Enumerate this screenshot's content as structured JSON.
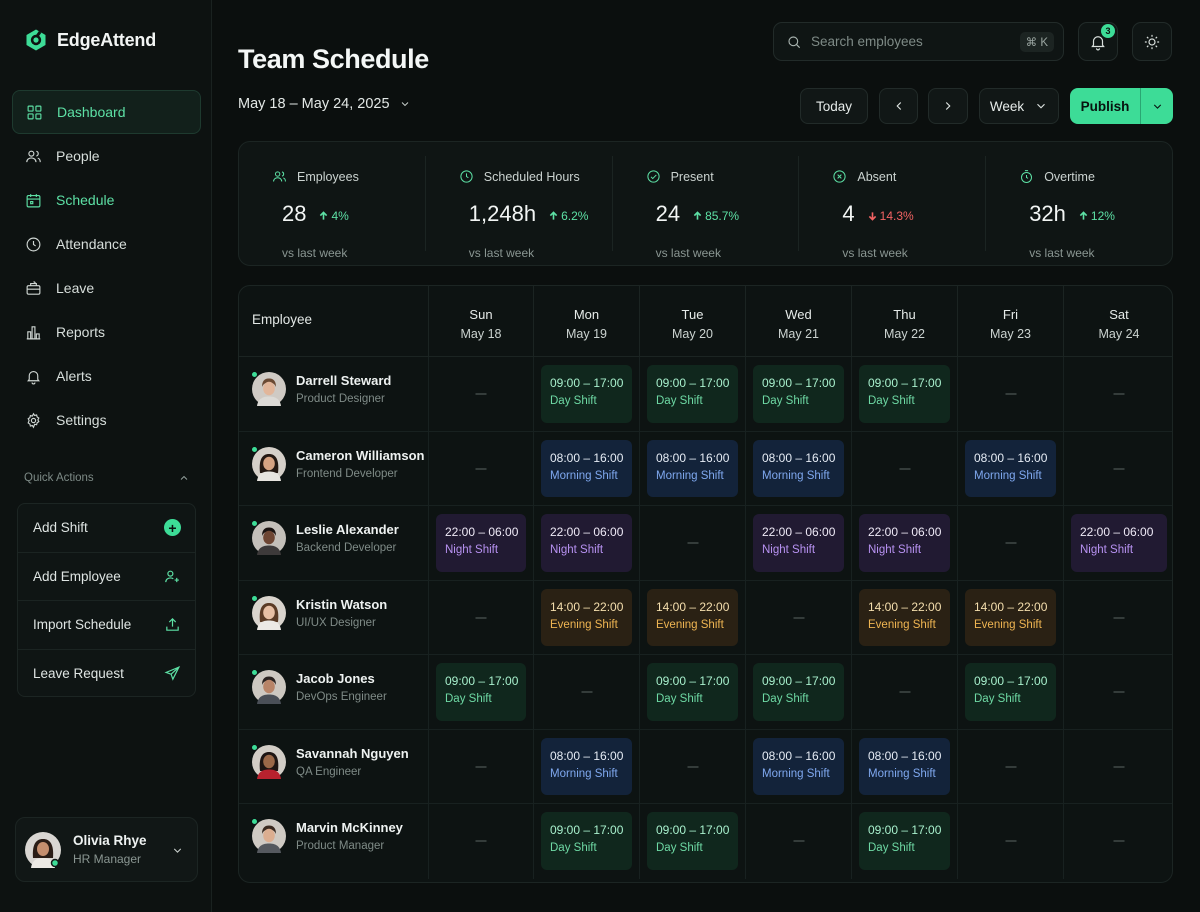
{
  "app": {
    "name": "EdgeAttend"
  },
  "nav": {
    "items": [
      {
        "key": "dashboard",
        "label": "Dashboard"
      },
      {
        "key": "people",
        "label": "People"
      },
      {
        "key": "schedule",
        "label": "Schedule"
      },
      {
        "key": "attendance",
        "label": "Attendance"
      },
      {
        "key": "leave",
        "label": "Leave"
      },
      {
        "key": "reports",
        "label": "Reports"
      },
      {
        "key": "alerts",
        "label": "Alerts"
      },
      {
        "key": "settings",
        "label": "Settings"
      }
    ],
    "active": "Dashboard",
    "current_page": "Schedule"
  },
  "quick_actions": {
    "title": "Quick Actions",
    "items": [
      {
        "label": "Add Shift",
        "icon": "plus-circle-icon"
      },
      {
        "label": "Add Employee",
        "icon": "user-plus-icon"
      },
      {
        "label": "Import Schedule",
        "icon": "upload-icon"
      },
      {
        "label": "Leave Request",
        "icon": "send-icon"
      }
    ]
  },
  "user": {
    "name": "Olivia Rhye",
    "role": "HR Manager"
  },
  "header": {
    "title": "Team Schedule",
    "date_range": "May 18 – May 24, 2025",
    "search_placeholder": "Search employees",
    "search_shortcut": "⌘ K",
    "notification_count": "3",
    "today_label": "Today",
    "view_label": "Week",
    "publish_label": "Publish"
  },
  "stats": [
    {
      "label": "Employees",
      "value": "28",
      "delta": "4%",
      "direction": "up",
      "sub": "vs last week",
      "icon": "users-icon"
    },
    {
      "label": "Scheduled Hours",
      "value": "1,248h",
      "delta": "6.2%",
      "direction": "up",
      "sub": "vs last week",
      "icon": "clock-icon"
    },
    {
      "label": "Present",
      "value": "24",
      "delta": "85.7%",
      "direction": "up",
      "sub": "vs last week",
      "icon": "check-circle-icon"
    },
    {
      "label": "Absent",
      "value": "4",
      "delta": "14.3%",
      "direction": "down",
      "sub": "vs last week",
      "icon": "x-circle-icon"
    },
    {
      "label": "Overtime",
      "value": "32h",
      "delta": "12%",
      "direction": "up",
      "sub": "vs last week",
      "icon": "stopwatch-icon"
    }
  ],
  "schedule": {
    "employee_header": "Employee",
    "days": [
      {
        "day": "Sun",
        "date": "May 18"
      },
      {
        "day": "Mon",
        "date": "May 19"
      },
      {
        "day": "Tue",
        "date": "May 20"
      },
      {
        "day": "Wed",
        "date": "May 21"
      },
      {
        "day": "Thu",
        "date": "May 22"
      },
      {
        "day": "Fri",
        "date": "May 23"
      },
      {
        "day": "Sat",
        "date": "May 24"
      }
    ],
    "shift_types": {
      "day": {
        "time": "09:00 – 17:00",
        "name": "Day Shift",
        "color": "#6ed9a4"
      },
      "morning": {
        "time": "08:00 – 16:00",
        "name": "Morning Shift",
        "color": "#7fa8ef"
      },
      "night": {
        "time": "22:00 – 06:00",
        "name": "Night Shift",
        "color": "#b892f2"
      },
      "evening": {
        "time": "14:00 – 22:00",
        "name": "Evening Shift",
        "color": "#efb552"
      }
    },
    "employees": [
      {
        "name": "Darrell Steward",
        "role": "Product Designer",
        "shifts": [
          null,
          "day",
          "day",
          "day",
          "day",
          null,
          null
        ]
      },
      {
        "name": "Cameron Williamson",
        "role": "Frontend Developer",
        "shifts": [
          null,
          "morning",
          "morning",
          "morning",
          null,
          "morning",
          null
        ]
      },
      {
        "name": "Leslie Alexander",
        "role": "Backend Developer",
        "shifts": [
          "night",
          "night",
          null,
          "night",
          "night",
          null,
          "night"
        ]
      },
      {
        "name": "Kristin Watson",
        "role": "UI/UX Designer",
        "shifts": [
          null,
          "evening",
          "evening",
          null,
          "evening",
          "evening",
          null
        ]
      },
      {
        "name": "Jacob Jones",
        "role": "DevOps Engineer",
        "shifts": [
          "day",
          null,
          "day",
          "day",
          null,
          "day",
          null
        ]
      },
      {
        "name": "Savannah Nguyen",
        "role": "QA Engineer",
        "shifts": [
          null,
          "morning",
          null,
          "morning",
          "morning",
          null,
          null
        ]
      },
      {
        "name": "Marvin McKinney",
        "role": "Product Manager",
        "shifts": [
          null,
          "day",
          "day",
          null,
          "day",
          null,
          null
        ]
      }
    ]
  },
  "colors": {
    "accent": "#3ddc97",
    "positive": "#5de0a5",
    "negative": "#f26363"
  }
}
